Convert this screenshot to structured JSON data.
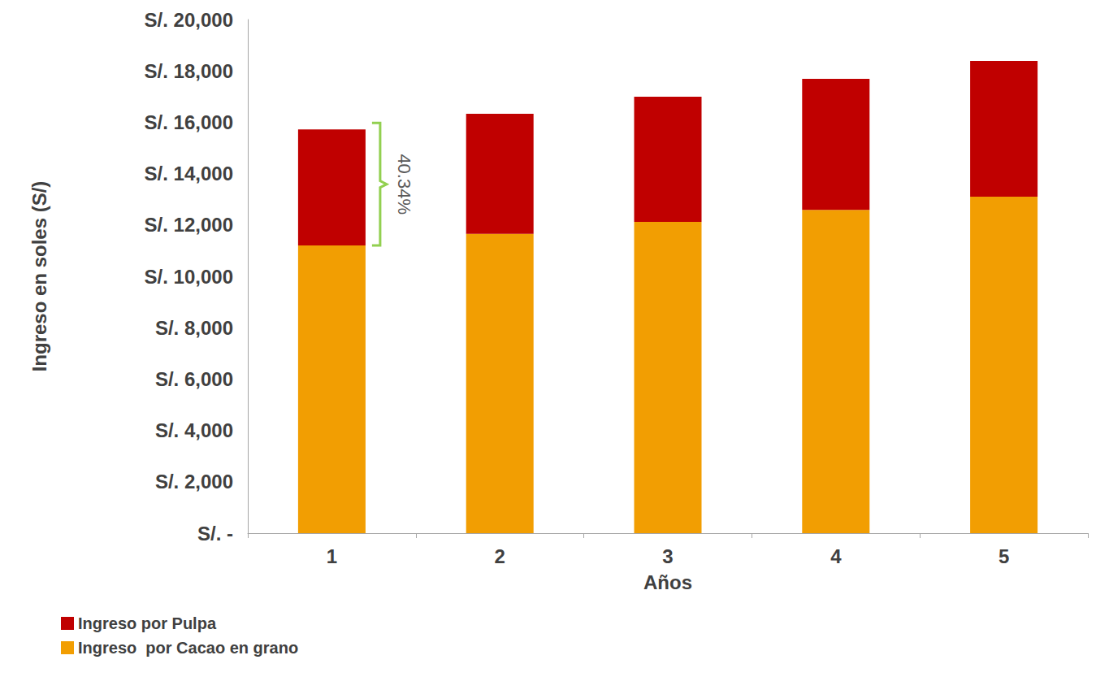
{
  "chart_data": {
    "type": "bar",
    "stacked": true,
    "x_label": "Años",
    "y_label": "Ingreso en soles (S/)",
    "categories": [
      "1",
      "2",
      "3",
      "4",
      "5"
    ],
    "series": [
      {
        "name": "Ingreso  por Cacao en grano",
        "color": "#f29e02",
        "values": [
          11200,
          11650,
          12120,
          12590,
          13100
        ]
      },
      {
        "name": "Ingreso por Pulpa",
        "color": "#c00000",
        "values": [
          4518,
          4680,
          4870,
          5100,
          5290
        ]
      }
    ],
    "ylim": [
      0,
      20000
    ],
    "yticks": [
      {
        "value": 0,
        "label": "S/. -"
      },
      {
        "value": 2000,
        "label": "S/. 2,000"
      },
      {
        "value": 4000,
        "label": "S/. 4,000"
      },
      {
        "value": 6000,
        "label": "S/. 6,000"
      },
      {
        "value": 8000,
        "label": "S/. 8,000"
      },
      {
        "value": 10000,
        "label": "S/. 10,000"
      },
      {
        "value": 12000,
        "label": "S/. 12,000"
      },
      {
        "value": 14000,
        "label": "S/. 14,000"
      },
      {
        "value": 16000,
        "label": "S/. 16,000"
      },
      {
        "value": 18000,
        "label": "S/. 18,000"
      },
      {
        "value": 20000,
        "label": "S/. 20,000"
      }
    ],
    "grid": false,
    "legend": "bottom-left",
    "annotation": {
      "text": "40.34%",
      "category": "1"
    }
  }
}
